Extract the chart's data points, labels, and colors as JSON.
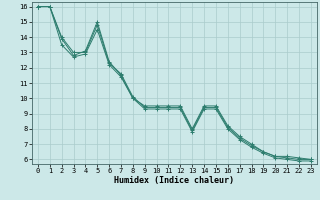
{
  "title": "",
  "xlabel": "Humidex (Indice chaleur)",
  "bg_color": "#cce8e8",
  "grid_color": "#aacccc",
  "line_color": "#2d7d6e",
  "xlim": [
    -0.5,
    23.5
  ],
  "ylim": [
    5.7,
    16.3
  ],
  "xticks": [
    0,
    1,
    2,
    3,
    4,
    5,
    6,
    7,
    8,
    9,
    10,
    11,
    12,
    13,
    14,
    15,
    16,
    17,
    18,
    19,
    20,
    21,
    22,
    23
  ],
  "yticks": [
    6,
    7,
    8,
    9,
    10,
    11,
    12,
    13,
    14,
    15,
    16
  ],
  "series": [
    {
      "x": [
        0,
        1,
        2,
        3,
        4,
        5,
        6,
        7,
        8,
        9,
        10,
        11,
        12,
        13,
        14,
        15,
        16,
        17,
        18,
        19,
        20,
        21,
        22,
        23
      ],
      "y": [
        16,
        16,
        13.9,
        12.8,
        13.1,
        15.0,
        12.4,
        11.5,
        10.0,
        9.5,
        9.5,
        9.5,
        9.5,
        8.0,
        9.5,
        9.5,
        8.2,
        7.5,
        7.0,
        6.5,
        6.2,
        6.2,
        6.1,
        6.0
      ]
    },
    {
      "x": [
        0,
        1,
        2,
        3,
        4,
        5,
        6,
        7,
        8,
        9,
        10,
        11,
        12,
        13,
        14,
        15,
        16,
        17,
        18,
        19,
        20,
        21,
        22,
        23
      ],
      "y": [
        16,
        16,
        14.0,
        13.0,
        13.0,
        14.8,
        12.3,
        11.6,
        10.1,
        9.4,
        9.4,
        9.4,
        9.4,
        7.9,
        9.4,
        9.4,
        8.1,
        7.4,
        6.9,
        6.5,
        6.2,
        6.1,
        6.0,
        6.0
      ]
    },
    {
      "x": [
        0,
        1,
        2,
        3,
        4,
        5,
        6,
        7,
        8,
        9,
        10,
        11,
        12,
        13,
        14,
        15,
        16,
        17,
        18,
        19,
        20,
        21,
        22,
        23
      ],
      "y": [
        16.0,
        16.0,
        13.5,
        12.7,
        12.9,
        14.5,
        12.2,
        11.4,
        10.0,
        9.3,
        9.3,
        9.3,
        9.3,
        7.8,
        9.3,
        9.3,
        8.0,
        7.3,
        6.8,
        6.4,
        6.1,
        6.0,
        5.9,
        5.9
      ]
    }
  ],
  "xlabel_fontsize": 6.0,
  "tick_fontsize": 5.0,
  "linewidth": 0.7,
  "markersize": 2.5
}
